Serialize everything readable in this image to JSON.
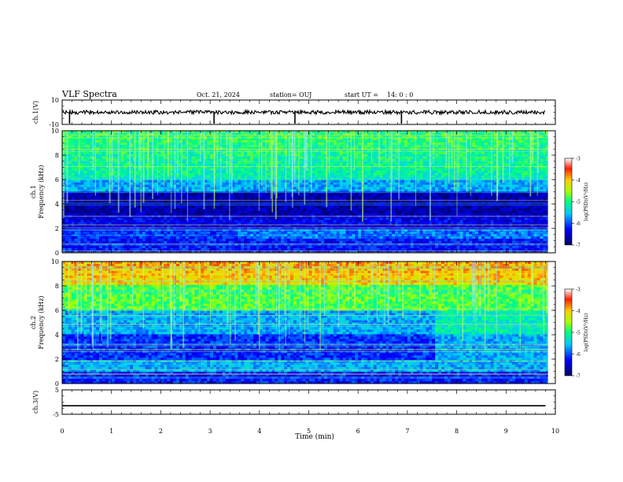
{
  "header": {
    "title": "VLF Spectra",
    "date": "Oct. 21, 2024",
    "station": "station= OUJ",
    "start_label": "start  UT =",
    "start_value": "14: 0  : 0"
  },
  "chart_data": [
    {
      "type": "line",
      "panel": "ch1-waveform",
      "ylabel": "ch.1(V)",
      "ylim": [
        -10,
        10
      ],
      "yticks": [
        "10",
        "-10"
      ],
      "xlim": [
        0,
        10
      ],
      "series": [
        {
          "x": [
            0,
            9.8
          ],
          "y": [
            0,
            0
          ]
        }
      ],
      "spikes_x": [
        0.15,
        3.08,
        4.72,
        6.88
      ]
    },
    {
      "type": "heatmap",
      "panel": "ch1-spectrogram",
      "ylabel": "ch.1\nFrequency (kHz)",
      "ylim": [
        0,
        10
      ],
      "yticks": [
        "0",
        "2",
        "4",
        "6",
        "8",
        "10"
      ],
      "xlim": [
        0,
        10
      ],
      "colorbar": {
        "label": "log(PSD)(V²/Hz)",
        "ticks": [
          "-3",
          "-4",
          "-5",
          "-6",
          "-7"
        ],
        "range": [
          -7,
          -3
        ]
      }
    },
    {
      "type": "heatmap",
      "panel": "ch2-spectrogram",
      "ylabel": "ch.2\nFrequency (kHz)",
      "ylim": [
        0,
        10
      ],
      "yticks": [
        "0",
        "2",
        "4",
        "6",
        "8",
        "10"
      ],
      "xlim": [
        0,
        10
      ],
      "colorbar": {
        "label": "log(PSD)(V²/Hz)",
        "ticks": [
          "-3",
          "-4",
          "-5",
          "-6",
          "-7"
        ],
        "range": [
          -7,
          -3
        ]
      }
    },
    {
      "type": "line",
      "panel": "ch3-waveform",
      "ylabel": "ch.3(V)",
      "ylim": [
        -5,
        5
      ],
      "yticks": [
        "5",
        "-5"
      ],
      "xlim": [
        0,
        10
      ],
      "series": [
        {
          "x": [
            0,
            9.8
          ],
          "y": [
            -1.5,
            -1.5
          ]
        }
      ]
    }
  ],
  "xaxis": {
    "label": "Time (min)",
    "ticks": [
      "0",
      "1",
      "2",
      "3",
      "4",
      "5",
      "6",
      "7",
      "8",
      "9",
      "10"
    ],
    "range": [
      0,
      10
    ]
  }
}
